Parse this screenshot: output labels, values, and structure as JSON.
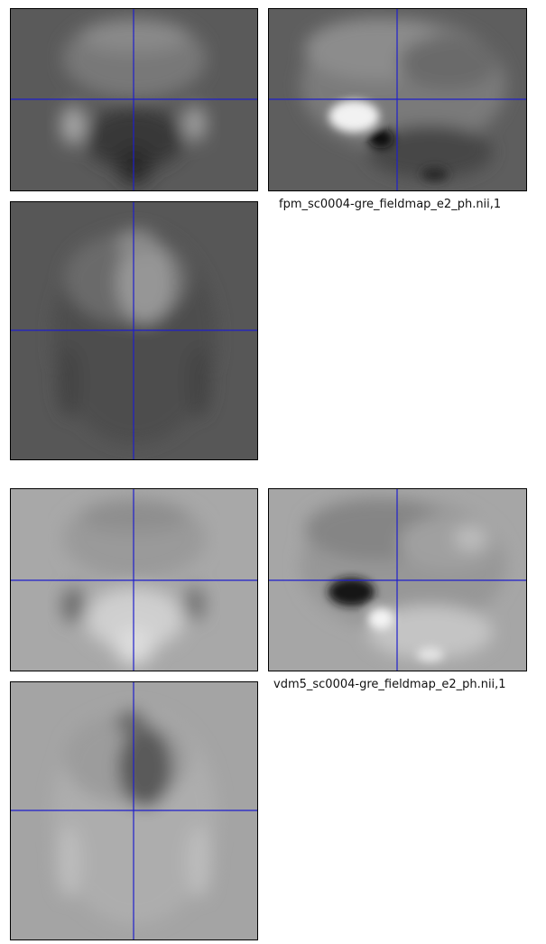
{
  "panel_top": {
    "caption": "fpm_sc0004-gre_fieldmap_e2_ph.nii,1"
  },
  "panel_bottom": {
    "caption": "vdm5_sc0004-gre_fieldmap_e2_ph.nii,1"
  },
  "colors": {
    "crosshair": "#1f1fcc",
    "fpm_background": "#5a5a5a",
    "vdm_background": "#a8a8a8"
  }
}
